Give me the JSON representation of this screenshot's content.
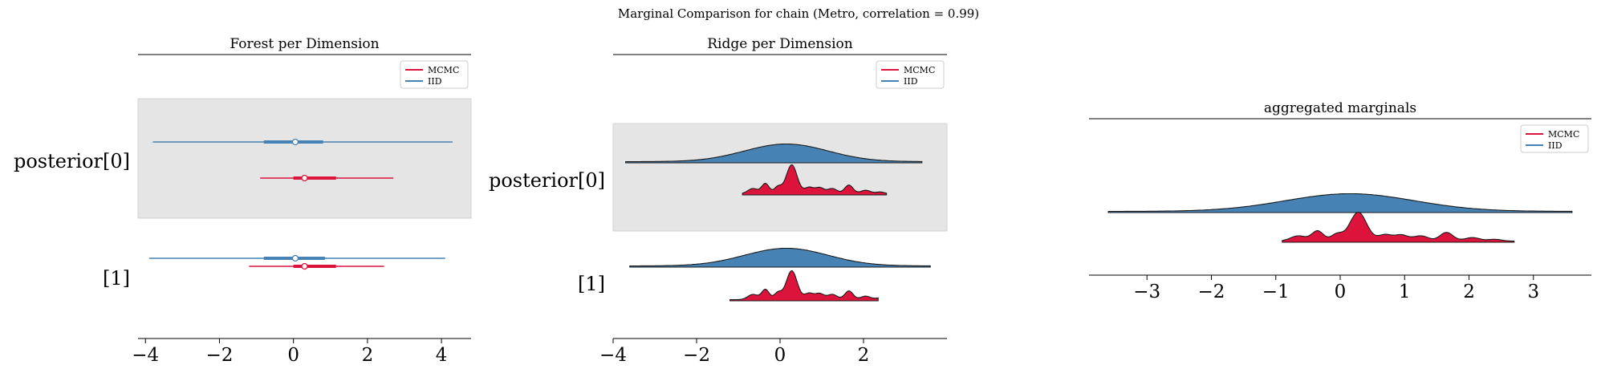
{
  "figure": {
    "suptitle": "Marginal Comparison for chain (Metro, correlation = 0.99)"
  },
  "colors": {
    "mcmc": "#dc143c",
    "iid": "#4682b4",
    "band": "#e5e5e5"
  },
  "chart_data": [
    {
      "type": "forest",
      "title": "Forest per Dimension",
      "xlim": [
        -4.2,
        4.8
      ],
      "xticks": [
        -4,
        -2,
        0,
        2,
        4
      ],
      "xticklabels": [
        "−4",
        "−2",
        "0",
        "2",
        "4"
      ],
      "rows": [
        {
          "label": "posterior[0]",
          "shaded": true,
          "series": {
            "iid": {
              "hdi": [
                -3.8,
                4.3
              ],
              "iqr": [
                -0.8,
                0.8
              ],
              "median": 0.05
            },
            "mcmc": {
              "hdi": [
                -0.9,
                2.7
              ],
              "iqr": [
                0.0,
                1.15
              ],
              "median": 0.3
            }
          }
        },
        {
          "label": "[1]",
          "shaded": false,
          "series": {
            "iid": {
              "hdi": [
                -3.9,
                4.1
              ],
              "iqr": [
                -0.8,
                0.85
              ],
              "median": 0.05
            },
            "mcmc": {
              "hdi": [
                -1.2,
                2.45
              ],
              "iqr": [
                0.0,
                1.15
              ],
              "median": 0.3
            }
          }
        }
      ],
      "legend": {
        "entries": [
          "MCMC",
          "IID"
        ],
        "loc": "top-right"
      }
    },
    {
      "type": "ridge",
      "title": "Ridge per Dimension",
      "xlim": [
        -4.0,
        4.0
      ],
      "xticks": [
        -4,
        -2,
        0,
        2
      ],
      "xticklabels": [
        "−4",
        "−2",
        "0",
        "2"
      ],
      "rows": [
        {
          "label": "posterior[0]",
          "shaded": true,
          "iid": {
            "range": [
              -3.7,
              3.4
            ]
          },
          "mcmc": {
            "range": [
              -0.9,
              2.55
            ]
          }
        },
        {
          "label": "[1]",
          "shaded": false,
          "iid": {
            "range": [
              -3.6,
              3.6
            ]
          },
          "mcmc": {
            "range": [
              -1.2,
              2.35
            ]
          }
        }
      ],
      "legend": {
        "entries": [
          "MCMC",
          "IID"
        ],
        "loc": "top-right"
      }
    },
    {
      "type": "ridge",
      "title": "aggregated marginals",
      "xlim": [
        -3.9,
        3.9
      ],
      "xticks": [
        -3,
        -2,
        -1,
        0,
        1,
        2,
        3
      ],
      "xticklabels": [
        "−3",
        "−2",
        "−1",
        "0",
        "1",
        "2",
        "3"
      ],
      "rows": [
        {
          "label": "",
          "shaded": false,
          "iid": {
            "range": [
              -3.6,
              3.6
            ]
          },
          "mcmc": {
            "range": [
              -0.9,
              2.7
            ]
          }
        }
      ],
      "legend": {
        "entries": [
          "MCMC",
          "IID"
        ],
        "loc": "top-right"
      }
    }
  ]
}
